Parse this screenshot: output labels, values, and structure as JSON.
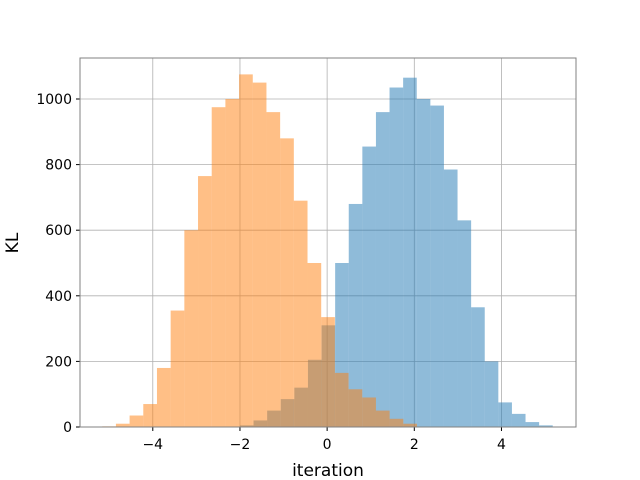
{
  "chart_data": {
    "type": "histogram",
    "xlabel": "iteration",
    "ylabel": "KL",
    "series": [
      {
        "color": "#1f77b4",
        "opacity": 0.5,
        "bins": [
          -2.0,
          -1.688,
          -1.376,
          -1.064,
          -0.752,
          -0.44,
          -0.128,
          0.184,
          0.496,
          0.808,
          1.12,
          1.432,
          1.744,
          2.056,
          2.368,
          2.68,
          2.992,
          3.304,
          3.616,
          3.928,
          4.24,
          4.552,
          4.864,
          5.176
        ],
        "values": [
          5,
          20,
          50,
          85,
          120,
          205,
          310,
          500,
          680,
          855,
          960,
          1035,
          1065,
          1000,
          980,
          785,
          630,
          365,
          200,
          75,
          40,
          15,
          5
        ]
      },
      {
        "color": "#ff7f0e",
        "opacity": 0.5,
        "bins": [
          -5.16,
          -4.846,
          -4.532,
          -4.218,
          -3.904,
          -3.59,
          -3.276,
          -2.962,
          -2.648,
          -2.334,
          -2.02,
          -1.706,
          -1.392,
          -1.078,
          -0.764,
          -0.45,
          -0.136,
          0.178,
          0.492,
          0.806,
          1.12,
          1.434,
          1.748,
          2.062
        ],
        "values": [
          2,
          10,
          35,
          70,
          180,
          355,
          600,
          765,
          975,
          1000,
          1075,
          1050,
          960,
          880,
          690,
          500,
          335,
          165,
          115,
          90,
          50,
          25,
          10
        ]
      }
    ],
    "xlim": [
      -5.67,
      5.71
    ],
    "ylim": [
      0,
      1125
    ],
    "xticks": [
      {
        "value": -4,
        "label": "−4"
      },
      {
        "value": -2,
        "label": "−2"
      },
      0,
      2,
      4
    ],
    "yticks": [
      0,
      200,
      400,
      600,
      800,
      1000
    ],
    "grid": true
  }
}
